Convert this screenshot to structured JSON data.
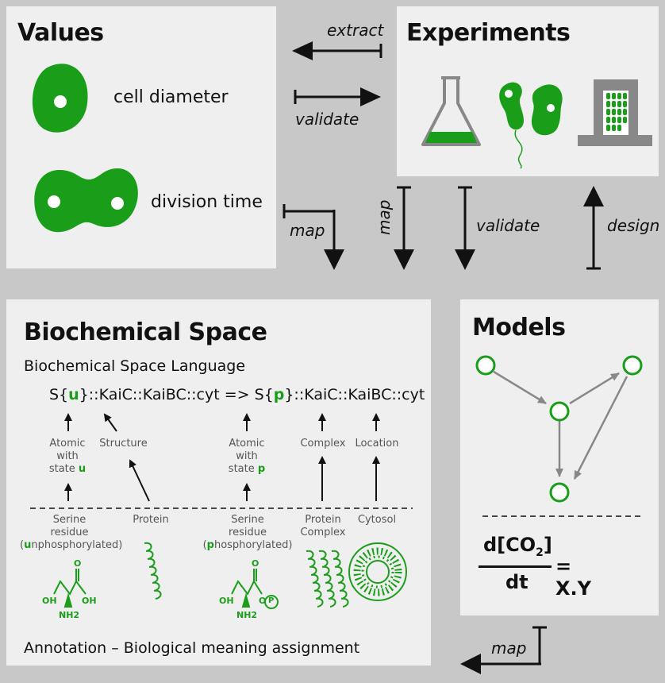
{
  "values": {
    "title": "Values",
    "cell_diameter": "cell diameter",
    "division_time": "division time"
  },
  "experiments": {
    "title": "Experiments"
  },
  "arrows": {
    "extract": "extract",
    "validate_top": "validate",
    "map_left": "map",
    "map_mid": "map",
    "validate_mid": "validate",
    "design": "design",
    "map_bottom": "map"
  },
  "biochem": {
    "title": "Biochemical Space",
    "subtitle": "Biochemical Space Language",
    "rule_a": "S{",
    "rule_u": "u",
    "rule_b": "}::KaiC::KaiBC::cyt => S{",
    "rule_p": "p",
    "rule_c": "}::KaiC::KaiBC::cyt",
    "atomic1_a": "Atomic",
    "atomic1_b": "with",
    "atomic1_c": "state",
    "atomic1_state": "u",
    "structure": "Structure",
    "atomic2_a": "Atomic",
    "atomic2_b": "with",
    "atomic2_c": "state",
    "atomic2_state": "p",
    "complex": "Complex",
    "location": "Location",
    "serine1_a": "Serine",
    "serine1_b": "residue",
    "serine1_c_open": "(",
    "serine1_c_letter": "u",
    "serine1_c_rest": "nphosphorylated)",
    "protein": "Protein",
    "serine2_a": "Serine",
    "serine2_b": "residue",
    "serine2_c_open": "(",
    "serine2_c_letter": "p",
    "serine2_c_rest": "hosphorylated)",
    "protein_complex_a": "Protein",
    "protein_complex_b": "Complex",
    "cytosol": "Cytosol",
    "chem_o": "O",
    "chem_oh": "OH",
    "chem_nh2": "NH2",
    "chem_p": "P",
    "annotation": "Annotation – Biological meaning assignment"
  },
  "models": {
    "title": "Models",
    "formula_num": "d[CO",
    "formula_sub": "2",
    "formula_close": "]",
    "formula_den": "dt",
    "formula_rhs": "= X.Y"
  },
  "colors": {
    "green": "#1a9e1a",
    "panel": "#efefef",
    "background": "#c8c8c8",
    "gray": "#888888"
  }
}
